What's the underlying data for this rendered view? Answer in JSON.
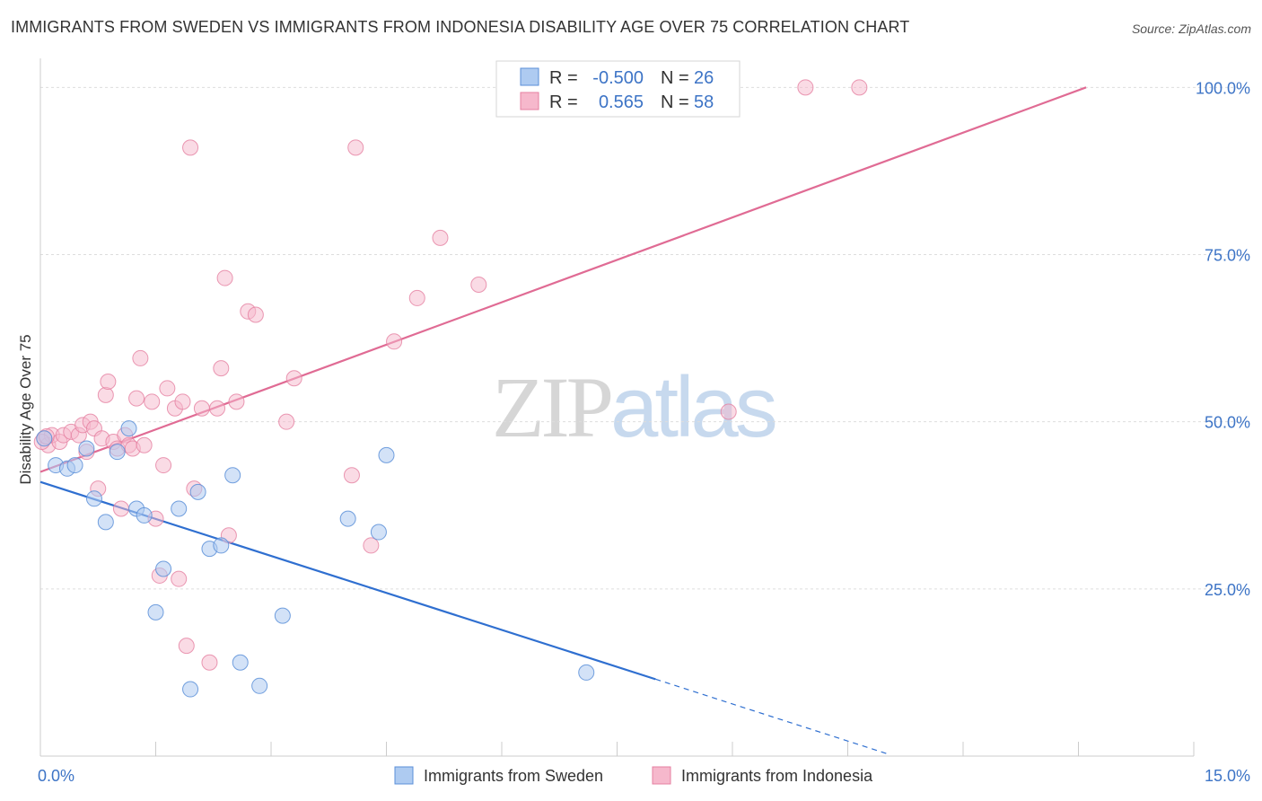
{
  "title": "IMMIGRANTS FROM SWEDEN VS IMMIGRANTS FROM INDONESIA DISABILITY AGE OVER 75 CORRELATION CHART",
  "source": "Source: ZipAtlas.com",
  "watermark": {
    "left": "ZIP",
    "right": "atlas"
  },
  "colors": {
    "sweden_fill": "#aecbf1",
    "sweden_stroke": "#5b8fd8",
    "sweden_line": "#2f6fd0",
    "indonesia_fill": "#f6b8cc",
    "indonesia_stroke": "#e57fa0",
    "indonesia_line": "#e06b94",
    "axis_label": "#3d74c6",
    "grid": "#dddddd"
  },
  "legend_top": {
    "rows": [
      {
        "r_label": "R =",
        "r_value": "-0.500",
        "n_label": "N =",
        "n_value": "26"
      },
      {
        "r_label": "R =",
        "r_value": "0.565",
        "n_label": "N =",
        "n_value": "58"
      }
    ]
  },
  "chart_data": {
    "type": "scatter",
    "title": "IMMIGRANTS FROM SWEDEN VS IMMIGRANTS FROM INDONESIA DISABILITY AGE OVER 75 CORRELATION CHART",
    "xlabel": "",
    "ylabel": "Disability Age Over 75",
    "xlim": [
      0,
      15
    ],
    "ylim": [
      0,
      103
    ],
    "x_tick_labels": [
      "0.0%",
      "15.0%"
    ],
    "y_ticks": [
      25,
      50,
      75,
      100
    ],
    "y_tick_labels": [
      "25.0%",
      "50.0%",
      "75.0%",
      "100.0%"
    ],
    "grid": true,
    "legend_position": "bottom-center",
    "series": [
      {
        "name": "Immigrants from Sweden",
        "r": -0.5,
        "n": 26,
        "trend": {
          "x0": 0,
          "y0": 41.0,
          "x1": 8.0,
          "y1": 11.5,
          "dash_to_x": 11.0,
          "dash_to_y": 0.4
        },
        "points": [
          [
            0.05,
            47.5
          ],
          [
            0.2,
            43.5
          ],
          [
            0.35,
            43.0
          ],
          [
            0.45,
            43.5
          ],
          [
            0.6,
            46.0
          ],
          [
            0.7,
            38.5
          ],
          [
            0.85,
            35.0
          ],
          [
            1.0,
            45.5
          ],
          [
            1.15,
            49.0
          ],
          [
            1.25,
            37.0
          ],
          [
            1.35,
            36.0
          ],
          [
            1.5,
            21.5
          ],
          [
            1.6,
            28.0
          ],
          [
            1.8,
            37.0
          ],
          [
            1.95,
            10.0
          ],
          [
            2.05,
            39.5
          ],
          [
            2.2,
            31.0
          ],
          [
            2.35,
            31.5
          ],
          [
            2.5,
            42.0
          ],
          [
            2.6,
            14.0
          ],
          [
            2.85,
            10.5
          ],
          [
            3.15,
            21.0
          ],
          [
            4.0,
            35.5
          ],
          [
            4.4,
            33.5
          ],
          [
            4.5,
            45.0
          ],
          [
            7.1,
            12.5
          ]
        ]
      },
      {
        "name": "Immigrants from Indonesia",
        "r": 0.565,
        "n": 58,
        "trend": {
          "x0": 0,
          "y0": 42.5,
          "x1": 13.6,
          "y1": 100.0
        },
        "points": [
          [
            0.05,
            47.5
          ],
          [
            0.1,
            46.5
          ],
          [
            0.15,
            48.0
          ],
          [
            0.25,
            47.0
          ],
          [
            0.3,
            48.0
          ],
          [
            0.4,
            48.5
          ],
          [
            0.5,
            48.0
          ],
          [
            0.55,
            49.5
          ],
          [
            0.6,
            45.5
          ],
          [
            0.65,
            50.0
          ],
          [
            0.7,
            49.0
          ],
          [
            0.75,
            40.0
          ],
          [
            0.8,
            47.5
          ],
          [
            0.85,
            54.0
          ],
          [
            0.88,
            56.0
          ],
          [
            0.95,
            47.0
          ],
          [
            1.0,
            46.0
          ],
          [
            1.05,
            37.0
          ],
          [
            1.1,
            48.0
          ],
          [
            1.15,
            46.5
          ],
          [
            1.2,
            46.0
          ],
          [
            1.25,
            53.5
          ],
          [
            1.3,
            59.5
          ],
          [
            1.35,
            46.5
          ],
          [
            1.45,
            53.0
          ],
          [
            1.5,
            35.5
          ],
          [
            1.55,
            27.0
          ],
          [
            1.6,
            43.5
          ],
          [
            1.65,
            55.0
          ],
          [
            1.75,
            52.0
          ],
          [
            1.8,
            26.5
          ],
          [
            1.85,
            53.0
          ],
          [
            1.9,
            16.5
          ],
          [
            1.95,
            91.0
          ],
          [
            2.0,
            40.0
          ],
          [
            2.1,
            52.0
          ],
          [
            2.2,
            14.0
          ],
          [
            2.3,
            52.0
          ],
          [
            2.35,
            58.0
          ],
          [
            2.4,
            71.5
          ],
          [
            2.45,
            33.0
          ],
          [
            2.55,
            53.0
          ],
          [
            2.7,
            66.5
          ],
          [
            2.8,
            66.0
          ],
          [
            3.2,
            50.0
          ],
          [
            3.3,
            56.5
          ],
          [
            4.05,
            42.0
          ],
          [
            4.1,
            91.0
          ],
          [
            4.3,
            31.5
          ],
          [
            4.6,
            62.0
          ],
          [
            4.9,
            68.5
          ],
          [
            5.2,
            77.5
          ],
          [
            5.7,
            70.5
          ],
          [
            8.95,
            51.5
          ],
          [
            9.95,
            100.0
          ],
          [
            10.65,
            100.0
          ],
          [
            0.02,
            47.0
          ],
          [
            0.08,
            47.8
          ]
        ]
      }
    ]
  }
}
